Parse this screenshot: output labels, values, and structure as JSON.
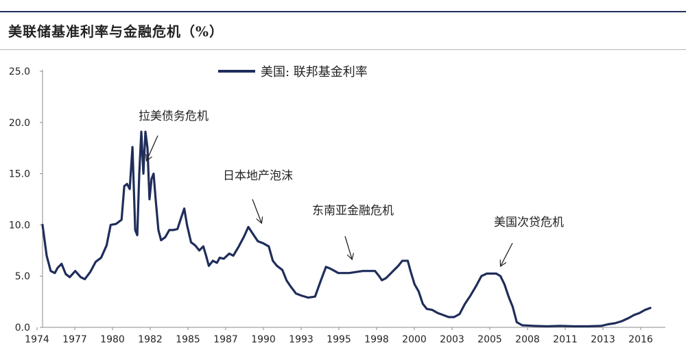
{
  "chart_data": {
    "type": "line",
    "title": "美联储基准利率与金融危机（%）",
    "xlabel": "",
    "ylabel": "",
    "x_ticks": [
      "1974",
      "1977",
      "1980",
      "1982",
      "1985",
      "1987",
      "1990",
      "1993",
      "1995",
      "1998",
      "2000",
      "2003",
      "2005",
      "2008",
      "2011",
      "2013",
      "2016"
    ],
    "y_ticks": [
      "25.0",
      "20.0",
      "15.0",
      "10.0",
      "5.0",
      "0.0"
    ],
    "ylim": [
      0,
      25
    ],
    "xlim": [
      1974,
      2018.7
    ],
    "grid": false,
    "legend_position": "top-center",
    "color": "#1f2d5a",
    "series": [
      {
        "name": "美国: 联邦基金利率",
        "x": [
          1974.0,
          1974.3,
          1974.6,
          1974.9,
          1975.1,
          1975.4,
          1975.7,
          1976.0,
          1976.4,
          1976.8,
          1977.1,
          1977.5,
          1977.9,
          1978.3,
          1978.7,
          1979.0,
          1979.4,
          1979.8,
          1980.0,
          1980.2,
          1980.4,
          1980.6,
          1980.8,
          1980.95,
          1981.1,
          1981.25,
          1981.4,
          1981.55,
          1981.7,
          1981.85,
          1982.0,
          1982.15,
          1982.3,
          1982.5,
          1982.7,
          1983.0,
          1983.3,
          1983.6,
          1983.9,
          1984.2,
          1984.4,
          1984.6,
          1984.9,
          1985.2,
          1985.5,
          1985.8,
          1986.0,
          1986.2,
          1986.5,
          1986.8,
          1987.0,
          1987.3,
          1987.7,
          1988.0,
          1988.4,
          1988.8,
          1989.1,
          1989.4,
          1989.8,
          1990.2,
          1990.6,
          1990.9,
          1991.2,
          1991.6,
          1991.9,
          1992.2,
          1992.6,
          1993.0,
          1993.5,
          1994.0,
          1994.4,
          1994.8,
          1995.0,
          1995.3,
          1995.7,
          1996.0,
          1996.5,
          1997.0,
          1997.5,
          1998.0,
          1998.4,
          1998.7,
          1998.9,
          1999.2,
          1999.5,
          1999.8,
          2000.1,
          2000.4,
          2000.6,
          2000.8,
          2001.0,
          2001.3,
          2001.6,
          2001.9,
          2002.2,
          2002.6,
          2003.0,
          2003.4,
          2003.8,
          2004.2,
          2004.6,
          2005.0,
          2005.4,
          2005.8,
          2006.2,
          2006.6,
          2007.0,
          2007.3,
          2007.6,
          2007.9,
          2008.2,
          2008.5,
          2008.8,
          2009.2,
          2010.0,
          2011.0,
          2012.0,
          2013.0,
          2014.0,
          2015.0,
          2015.5,
          2016.0,
          2016.5,
          2017.0,
          2017.4,
          2017.8,
          2018.2,
          2018.6
        ],
        "values": [
          10.0,
          7.0,
          5.5,
          5.3,
          5.8,
          6.2,
          5.2,
          4.9,
          5.5,
          4.9,
          4.7,
          5.4,
          6.4,
          6.8,
          8.0,
          10.0,
          10.1,
          10.5,
          13.8,
          14.0,
          13.5,
          17.6,
          9.5,
          9.0,
          15.0,
          19.1,
          15.0,
          19.1,
          17.5,
          12.5,
          14.5,
          15.0,
          12.5,
          9.5,
          8.5,
          8.8,
          9.5,
          9.5,
          9.6,
          10.8,
          11.6,
          10.0,
          8.3,
          8.0,
          7.5,
          7.9,
          7.0,
          6.0,
          6.5,
          6.3,
          6.8,
          6.7,
          7.2,
          7.0,
          7.9,
          8.9,
          9.8,
          9.2,
          8.4,
          8.2,
          7.9,
          6.5,
          6.0,
          5.6,
          4.6,
          4.0,
          3.3,
          3.1,
          2.9,
          3.0,
          4.5,
          5.9,
          5.8,
          5.6,
          5.3,
          5.3,
          5.3,
          5.4,
          5.5,
          5.5,
          5.5,
          5.0,
          4.6,
          4.8,
          5.2,
          5.6,
          6.0,
          6.5,
          6.5,
          6.5,
          5.5,
          4.2,
          3.5,
          2.3,
          1.8,
          1.7,
          1.4,
          1.2,
          1.0,
          1.0,
          1.3,
          2.3,
          3.1,
          4.0,
          5.0,
          5.25,
          5.25,
          5.25,
          5.0,
          4.2,
          3.0,
          2.0,
          0.5,
          0.2,
          0.15,
          0.1,
          0.15,
          0.1,
          0.1,
          0.15,
          0.3,
          0.4,
          0.6,
          0.9,
          1.2,
          1.4,
          1.7,
          1.9
        ]
      }
    ],
    "annotations": [
      {
        "text": "拉美债务危机",
        "x": 1982.7,
        "y": 17.9
      },
      {
        "text": "日本地产泡沫",
        "x": 1990.0,
        "y": 10.1
      },
      {
        "text": "东南亚金融危机",
        "x": 1997.3,
        "y": 6.6
      },
      {
        "text": "美国次贷危机",
        "x": 2007.2,
        "y": 5.9
      }
    ]
  }
}
